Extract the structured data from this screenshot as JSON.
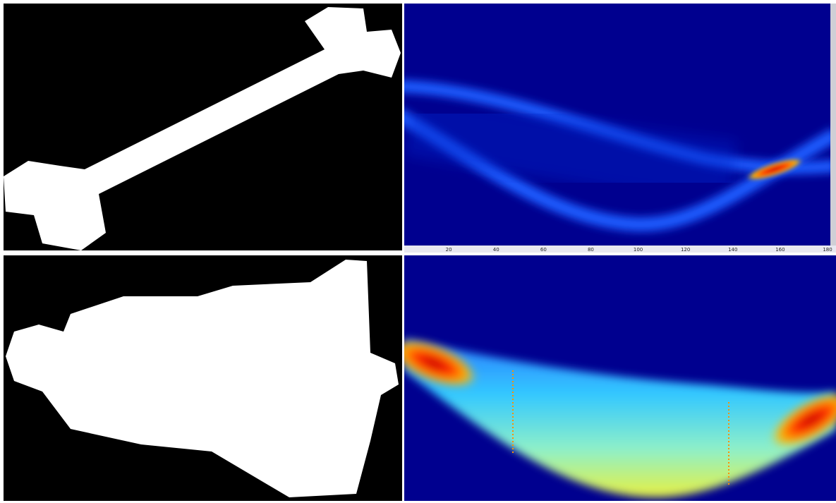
{
  "sinogram_axis": {
    "tick_labels": [
      "20",
      "40",
      "60",
      "80",
      "100",
      "120",
      "140",
      "160",
      "180"
    ]
  }
}
